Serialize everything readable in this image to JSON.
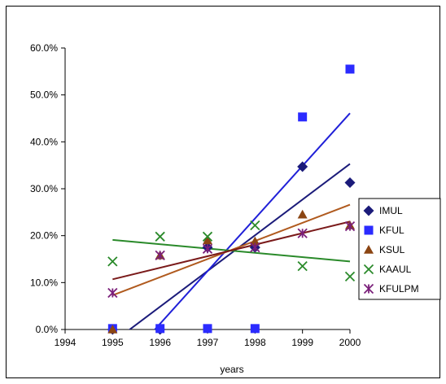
{
  "chart_data": {
    "type": "scatter",
    "title": "",
    "xlabel": "years",
    "ylabel": "",
    "xlim": [
      1994,
      2000
    ],
    "ylim": [
      0,
      0.6
    ],
    "x_ticks": [
      1994,
      1995,
      1996,
      1997,
      1998,
      1999,
      2000
    ],
    "x_tick_labels": [
      "1994",
      "1995",
      "1996",
      "1997",
      "1998",
      "1999",
      "2000"
    ],
    "y_ticks": [
      0,
      0.1,
      0.2,
      0.3,
      0.4,
      0.5,
      0.6
    ],
    "y_tick_labels": [
      "0.0%",
      "10.0%",
      "20.0%",
      "30.0%",
      "40.0%",
      "50.0%",
      "60.0%"
    ],
    "grid": false,
    "legend_position": "right",
    "series": [
      {
        "name": "IMUL",
        "marker": "diamond",
        "color": "#1b1b7a",
        "trend_color": "#1b1b7a",
        "x": [
          1995,
          1996,
          1997,
          1998,
          1999,
          2000
        ],
        "y": [
          0.0,
          0.0,
          0.175,
          0.175,
          0.347,
          0.313
        ],
        "trendline": [
          [
            1995,
            -0.0275
          ],
          [
            2000,
            0.353
          ]
        ]
      },
      {
        "name": "KFUL",
        "marker": "square",
        "color": "#2b2bff",
        "trend_color": "#2020d8",
        "x": [
          1995,
          1996,
          1997,
          1998,
          1999,
          2000
        ],
        "y": [
          0.002,
          0.002,
          0.002,
          0.002,
          0.453,
          0.555
        ],
        "trendline": [
          [
            1995,
            -0.1
          ],
          [
            2000,
            0.461
          ]
        ]
      },
      {
        "name": "KSUL",
        "marker": "triangle",
        "color": "#8b4513",
        "trend_color": "#b05a1e",
        "x": [
          1995,
          1996,
          1997,
          1998,
          1999,
          2000
        ],
        "y": [
          0.0,
          0.158,
          0.19,
          0.188,
          0.245,
          0.222
        ],
        "trendline": [
          [
            1995,
            0.073
          ],
          [
            2000,
            0.266
          ]
        ]
      },
      {
        "name": "KAAUL",
        "marker": "x",
        "color": "#2a8a2a",
        "trend_color": "#2a8a2a",
        "x": [
          1995,
          1996,
          1997,
          1998,
          1999,
          2000
        ],
        "y": [
          0.145,
          0.198,
          0.198,
          0.222,
          0.135,
          0.113
        ],
        "trendline": [
          [
            1995,
            0.191
          ],
          [
            2000,
            0.145
          ]
        ]
      },
      {
        "name": "KFULPM",
        "marker": "asterisk",
        "color": "#7a1f7a",
        "trend_color": "#7a1a1a",
        "x": [
          1995,
          1996,
          1997,
          1998,
          1999,
          2000
        ],
        "y": [
          0.078,
          0.158,
          0.172,
          0.175,
          0.205,
          0.22
        ],
        "trendline": [
          [
            1995,
            0.107
          ],
          [
            2000,
            0.23
          ]
        ]
      }
    ]
  }
}
